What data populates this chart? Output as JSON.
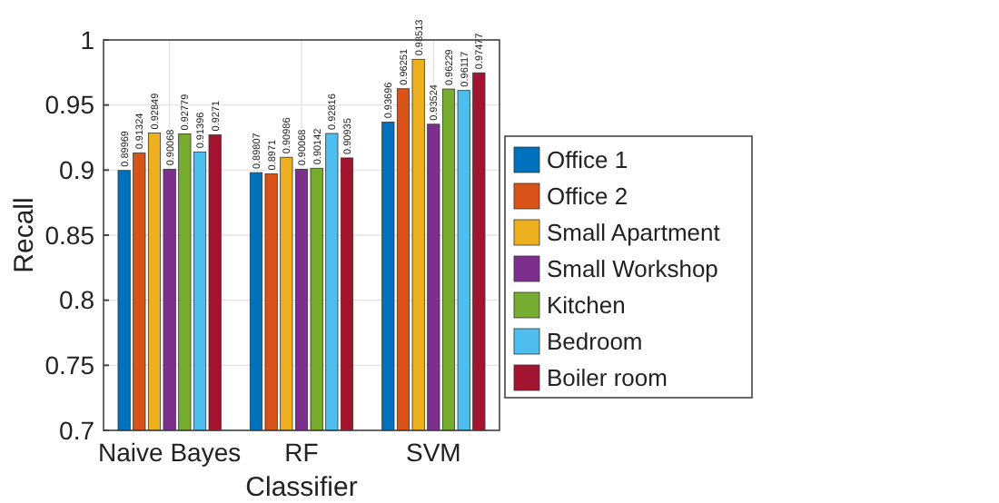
{
  "chart_data": {
    "type": "bar",
    "xlabel": "Classifier",
    "ylabel": "Recall",
    "categories": [
      "Naive Bayes",
      "RF",
      "SVM"
    ],
    "series": [
      {
        "name": "Office 1",
        "color": "#0072bd",
        "values": [
          0.89969,
          0.89807,
          0.93696
        ]
      },
      {
        "name": "Office 2",
        "color": "#d95319",
        "values": [
          0.91324,
          0.8971,
          0.96251
        ]
      },
      {
        "name": "Small Apartment",
        "color": "#edb120",
        "values": [
          0.92849,
          0.90986,
          0.98513
        ]
      },
      {
        "name": "Small Workshop",
        "color": "#7e2f8e",
        "values": [
          0.90068,
          0.90068,
          0.93524
        ]
      },
      {
        "name": "Kitchen",
        "color": "#77ac30",
        "values": [
          0.92779,
          0.90142,
          0.96229
        ]
      },
      {
        "name": "Bedroom",
        "color": "#4dbeee",
        "values": [
          0.91396,
          0.92816,
          0.96117
        ]
      },
      {
        "name": "Boiler room",
        "color": "#a2142f",
        "values": [
          0.9271,
          0.90935,
          0.97477
        ]
      }
    ],
    "ylim": [
      0.7,
      1
    ],
    "yticks": [
      0.7,
      0.75,
      0.8,
      0.85,
      0.9,
      0.95,
      1
    ],
    "grid": true,
    "legend": "right",
    "data_labels": true
  }
}
